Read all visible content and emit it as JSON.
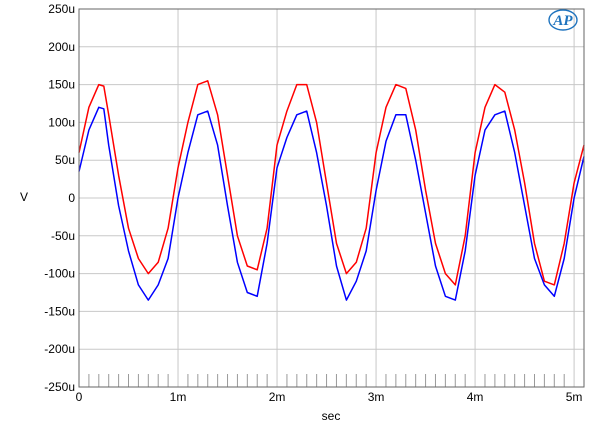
{
  "chart_data": {
    "type": "line",
    "title": "",
    "xlabel": "sec",
    "ylabel": "V",
    "xlim": [
      0,
      0.0051
    ],
    "ylim": [
      -250,
      250
    ],
    "x_ticks": [
      {
        "value": 0,
        "label": "0"
      },
      {
        "value": 0.001,
        "label": "1m"
      },
      {
        "value": 0.002,
        "label": "2m"
      },
      {
        "value": 0.003,
        "label": "3m"
      },
      {
        "value": 0.004,
        "label": "4m"
      },
      {
        "value": 0.005,
        "label": "5m"
      }
    ],
    "y_ticks": [
      {
        "value": 250,
        "label": "250u"
      },
      {
        "value": 200,
        "label": "200u"
      },
      {
        "value": 150,
        "label": "150u"
      },
      {
        "value": 100,
        "label": "100u"
      },
      {
        "value": 50,
        "label": "50u"
      },
      {
        "value": 0,
        "label": "0"
      },
      {
        "value": -50,
        "label": "-50u"
      },
      {
        "value": -100,
        "label": "-100u"
      },
      {
        "value": -150,
        "label": "-150u"
      },
      {
        "value": -200,
        "label": "-200u"
      },
      {
        "value": -250,
        "label": "-250u"
      }
    ],
    "y_unit_note": "values in microvolts",
    "grid": true,
    "minor_x_ticks_at_bottom": true,
    "series": [
      {
        "color": "#0000ff",
        "x": [
          0,
          0.0001,
          0.0002,
          0.00025,
          0.0003,
          0.0004,
          0.0005,
          0.0006,
          0.0007,
          0.0008,
          0.0009,
          0.001,
          0.0011,
          0.0012,
          0.0013,
          0.0014,
          0.0015,
          0.0016,
          0.0017,
          0.0018,
          0.0019,
          0.002,
          0.0021,
          0.0022,
          0.0023,
          0.0024,
          0.0025,
          0.0026,
          0.0027,
          0.0028,
          0.0029,
          0.003,
          0.0031,
          0.0032,
          0.0033,
          0.0034,
          0.0035,
          0.0036,
          0.0037,
          0.0038,
          0.0039,
          0.004,
          0.0041,
          0.0042,
          0.0043,
          0.0044,
          0.0045,
          0.0046,
          0.0047,
          0.0048,
          0.0049,
          0.005,
          0.0051
        ],
        "values": [
          35,
          90,
          120,
          118,
          70,
          -10,
          -70,
          -115,
          -135,
          -115,
          -80,
          0,
          60,
          110,
          115,
          70,
          -10,
          -85,
          -125,
          -130,
          -60,
          40,
          80,
          110,
          115,
          60,
          -10,
          -90,
          -135,
          -110,
          -70,
          10,
          75,
          110,
          110,
          50,
          -20,
          -90,
          -130,
          -135,
          -70,
          30,
          90,
          110,
          115,
          60,
          -10,
          -80,
          -115,
          -130,
          -80,
          0,
          55
        ]
      },
      {
        "color": "#ff0000",
        "x": [
          0,
          0.0001,
          0.0002,
          0.00025,
          0.0003,
          0.0004,
          0.0005,
          0.0006,
          0.0007,
          0.0008,
          0.0009,
          0.001,
          0.0011,
          0.0012,
          0.0013,
          0.0014,
          0.0015,
          0.0016,
          0.0017,
          0.0018,
          0.0019,
          0.002,
          0.0021,
          0.0022,
          0.0023,
          0.0024,
          0.0025,
          0.0026,
          0.0027,
          0.0028,
          0.0029,
          0.003,
          0.0031,
          0.0032,
          0.0033,
          0.0034,
          0.0035,
          0.0036,
          0.0037,
          0.0038,
          0.0039,
          0.004,
          0.0041,
          0.0042,
          0.0043,
          0.0044,
          0.0045,
          0.0046,
          0.0047,
          0.0048,
          0.0049,
          0.005,
          0.0051
        ],
        "values": [
          60,
          120,
          150,
          148,
          110,
          30,
          -40,
          -80,
          -100,
          -85,
          -40,
          40,
          100,
          150,
          155,
          110,
          30,
          -50,
          -90,
          -95,
          -40,
          70,
          115,
          150,
          150,
          100,
          20,
          -60,
          -100,
          -85,
          -40,
          60,
          120,
          150,
          145,
          90,
          10,
          -60,
          -100,
          -115,
          -50,
          60,
          120,
          150,
          140,
          90,
          20,
          -60,
          -110,
          -115,
          -60,
          20,
          70
        ]
      }
    ]
  },
  "logo": {
    "text": "AP",
    "color": "#1e73be"
  }
}
